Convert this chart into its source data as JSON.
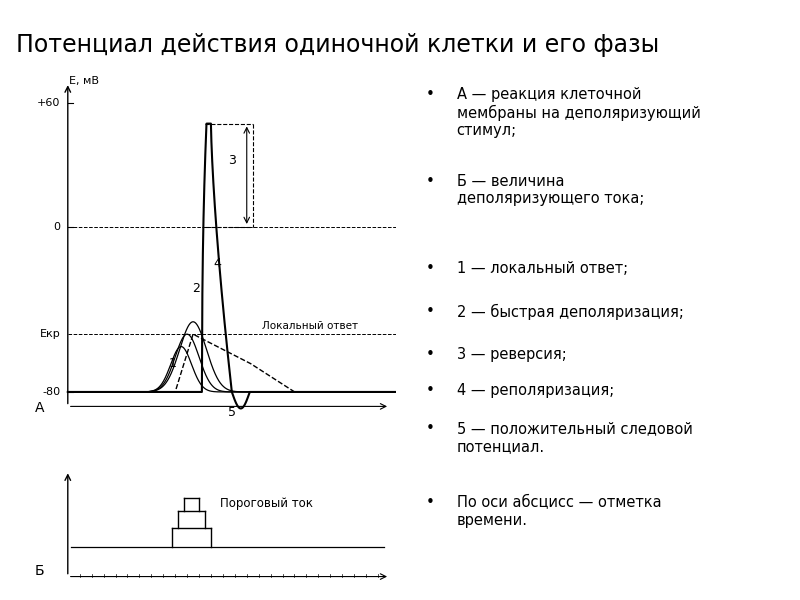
{
  "title": "Потенциал действия одиночной клетки и его фазы",
  "title_fontsize": 17,
  "ylabel_A": "Е, мВ",
  "ytick_labels_A": [
    "+60",
    "0",
    "-80"
  ],
  "ytick_values_A": [
    60,
    0,
    -80
  ],
  "Ekr_label": "Екр",
  "Ekr_value": -52,
  "resting_potential": -80,
  "peak_potential": 50,
  "background_color": "#ffffff",
  "line_color": "#000000",
  "label_A": "А",
  "label_B": "Б",
  "lokalny_otvet": "Локальный ответ",
  "porogovyi_tok": "Пороговый ток",
  "bullet_texts": [
    "А — реакция клеточной\nмембраны на деполяризующий\nстимул;",
    "Б — величина\nдеполяризующего тока;",
    "1 — локальный ответ;",
    "2 — быстрая деполяризация;",
    "3 — реверсия;",
    "4 — реполяризация;",
    "5 — положительный следовой\nпотенциал.",
    "По оси абсцисс — отметка\nвремени."
  ]
}
